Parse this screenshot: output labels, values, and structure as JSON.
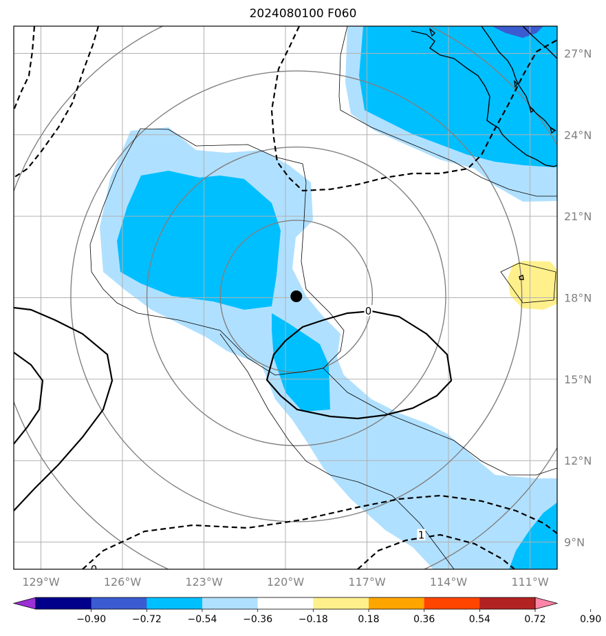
{
  "title": "2024080100 F060",
  "map": {
    "lon_range": [
      -130,
      -110
    ],
    "lat_range": [
      8,
      28
    ],
    "lon_ticks": [
      {
        "value": -129,
        "label": "129°W"
      },
      {
        "value": -126,
        "label": "126°W"
      },
      {
        "value": -123,
        "label": "123°W"
      },
      {
        "value": -120,
        "label": "120°W"
      },
      {
        "value": -117,
        "label": "117°W"
      },
      {
        "value": -114,
        "label": "114°W"
      },
      {
        "value": -111,
        "label": "111°W"
      }
    ],
    "lat_ticks": [
      {
        "value": 9,
        "label": "9°N"
      },
      {
        "value": 12,
        "label": "12°N"
      },
      {
        "value": 15,
        "label": "15°N"
      },
      {
        "value": 18,
        "label": "18°N"
      },
      {
        "value": 21,
        "label": "21°N"
      },
      {
        "value": 24,
        "label": "24°N"
      },
      {
        "value": 27,
        "label": "27°N"
      }
    ],
    "storm_center": {
      "lon": -119.6,
      "lat": 18.05
    },
    "range_rings_deg": [
      2.8,
      5.5,
      8.3,
      11.1
    ],
    "contour_labels": [
      {
        "text": "0",
        "lon": -116.95,
        "lat": 17.5
      },
      {
        "text": "0",
        "lon": -127.05,
        "lat": 8.0
      },
      {
        "text": "1",
        "lon": -115.0,
        "lat": 9.25
      }
    ]
  },
  "colorbar": {
    "colors": [
      "#9b30d6",
      "#00008b",
      "#3b5bd0",
      "#00bfff",
      "#b0e0ff",
      "#ffffff",
      "#fff08c",
      "#ffa500",
      "#ff4500",
      "#b22222",
      "#ff85a8"
    ],
    "labels": [
      "−0.90",
      "−0.72",
      "−0.54",
      "−0.36",
      "−0.18",
      "0.18",
      "0.36",
      "0.54",
      "0.72",
      "0.90"
    ]
  }
}
